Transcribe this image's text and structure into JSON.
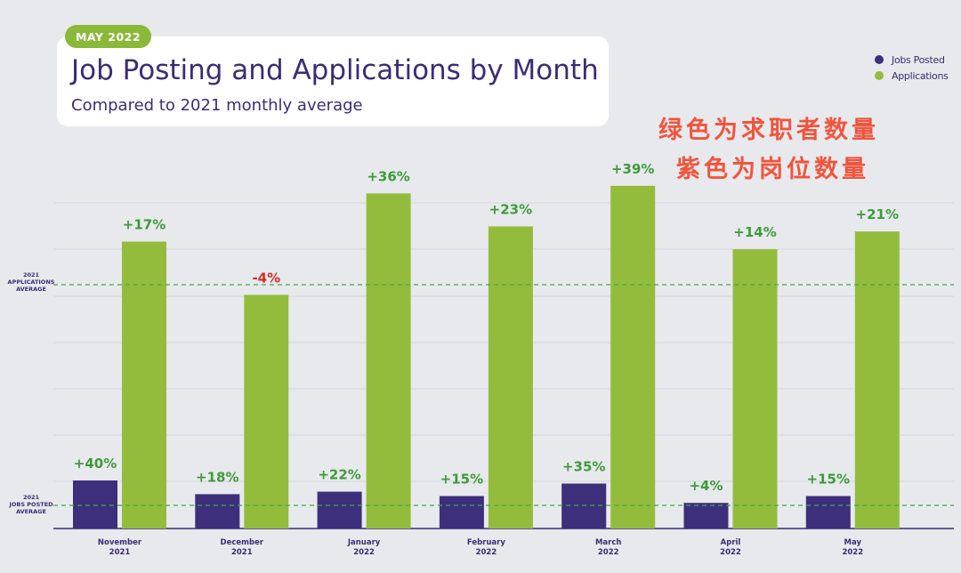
{
  "badge": "MAY 2022",
  "title": "Job Posting and Applications by Month",
  "subtitle": "Compared to 2021 monthly average",
  "annotation_lines": [
    "绿色为求职者数量",
    "紫色为岗位数量"
  ],
  "colors": {
    "jobs_posted": "#3d2f7b",
    "applications": "#93bc3c",
    "positive_label": "#3f9a3a",
    "negative_label": "#d62a2a",
    "reference_line": "#47a447",
    "annotation": "#f0553c"
  },
  "reference_labels": {
    "applications": [
      "2021",
      "APPLICATIONS",
      "AVERAGE"
    ],
    "jobs": [
      "2021",
      "JOBS POSTED",
      "AVERAGE"
    ]
  },
  "chart_data": {
    "type": "bar",
    "categories": [
      [
        "November",
        "2021"
      ],
      [
        "December",
        "2021"
      ],
      [
        "January",
        "2022"
      ],
      [
        "February",
        "2022"
      ],
      [
        "March",
        "2022"
      ],
      [
        "April",
        "2022"
      ],
      [
        "May",
        "2022"
      ]
    ],
    "series": [
      {
        "name": "Jobs Posted",
        "values": [
          40,
          18,
          22,
          15,
          35,
          4,
          15
        ],
        "labels": [
          "+40%",
          "+18%",
          "+22%",
          "+15%",
          "+35%",
          "+4%",
          "+15%"
        ]
      },
      {
        "name": "Applications",
        "values": [
          17,
          -4,
          36,
          23,
          39,
          14,
          21
        ],
        "labels": [
          "+17%",
          "-4%",
          "+36%",
          "+23%",
          "+39%",
          "+14%",
          "+21%"
        ]
      }
    ],
    "legend": "top-right",
    "grid": true
  }
}
